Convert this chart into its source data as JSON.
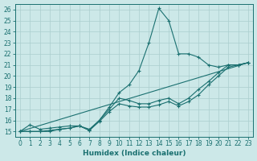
{
  "xlabel": "Humidex (Indice chaleur)",
  "bg_color": "#cce8e8",
  "grid_color": "#aacece",
  "line_color": "#1a7070",
  "xlim": [
    -0.5,
    23.5
  ],
  "ylim": [
    14.5,
    26.5
  ],
  "xticks": [
    0,
    1,
    2,
    3,
    4,
    5,
    6,
    7,
    8,
    9,
    10,
    11,
    12,
    13,
    14,
    15,
    16,
    17,
    18,
    19,
    20,
    21,
    22,
    23
  ],
  "yticks": [
    15,
    16,
    17,
    18,
    19,
    20,
    21,
    22,
    23,
    24,
    25,
    26
  ],
  "lines": [
    {
      "x": [
        0,
        1,
        2,
        3,
        4,
        5,
        6,
        7,
        8,
        9,
        10,
        11,
        12,
        13,
        14,
        15,
        16,
        17,
        18,
        19,
        20,
        21,
        22,
        23
      ],
      "y": [
        15.0,
        15.6,
        15.2,
        15.3,
        15.4,
        15.5,
        15.5,
        15.2,
        16.0,
        17.2,
        18.5,
        19.2,
        20.5,
        23.0,
        26.1,
        25.0,
        22.0,
        22.0,
        21.7,
        21.0,
        20.8,
        21.0,
        21.0,
        21.2
      ],
      "marker": true
    },
    {
      "x": [
        0,
        1,
        2,
        3,
        4,
        5,
        6,
        7,
        8,
        9,
        10,
        11,
        12,
        13,
        14,
        15,
        16,
        17,
        18,
        19,
        20,
        21,
        22,
        23
      ],
      "y": [
        15.0,
        15.0,
        15.0,
        15.1,
        15.2,
        15.3,
        15.5,
        15.1,
        16.0,
        17.0,
        18.0,
        17.8,
        17.5,
        17.5,
        17.8,
        18.0,
        17.5,
        18.0,
        18.8,
        19.5,
        20.3,
        21.0,
        21.0,
        21.2
      ],
      "marker": true
    },
    {
      "x": [
        0,
        1,
        2,
        3,
        4,
        5,
        6,
        7,
        8,
        9,
        10,
        11,
        12,
        13,
        14,
        15,
        16,
        17,
        18,
        19,
        20,
        21,
        22,
        23
      ],
      "y": [
        15.0,
        15.0,
        15.0,
        15.0,
        15.2,
        15.3,
        15.5,
        15.1,
        15.9,
        16.8,
        17.5,
        17.3,
        17.2,
        17.2,
        17.4,
        17.7,
        17.3,
        17.7,
        18.3,
        19.2,
        20.0,
        20.8,
        21.0,
        21.2
      ],
      "marker": true
    },
    {
      "x": [
        0,
        23
      ],
      "y": [
        15.0,
        21.2
      ],
      "marker": false
    }
  ]
}
